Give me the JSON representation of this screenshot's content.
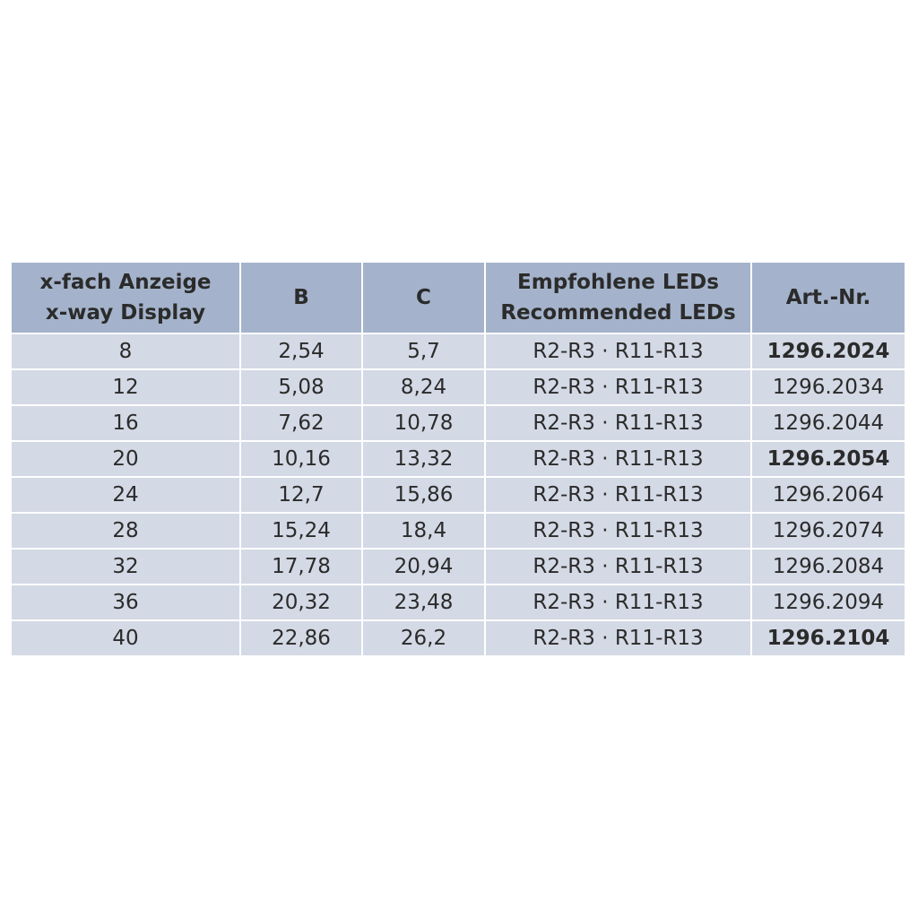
{
  "table": {
    "header": [
      [
        "x-fach Anzeige",
        "x-way Display"
      ],
      [
        "B"
      ],
      [
        "C"
      ],
      [
        "Empfohlene LEDs",
        "Recommended LEDs"
      ],
      [
        "Art.-Nr."
      ]
    ],
    "rows": [
      {
        "cells": [
          "8",
          "2,54",
          "5,7",
          "R2-R3 · R11-R13",
          "1296.2024"
        ],
        "bold": true
      },
      {
        "cells": [
          "12",
          "5,08",
          "8,24",
          "R2-R3 · R11-R13",
          "1296.2034"
        ],
        "bold": false
      },
      {
        "cells": [
          "16",
          "7,62",
          "10,78",
          "R2-R3 · R11-R13",
          "1296.2044"
        ],
        "bold": false
      },
      {
        "cells": [
          "20",
          "10,16",
          "13,32",
          "R2-R3 · R11-R13",
          "1296.2054"
        ],
        "bold": true
      },
      {
        "cells": [
          "24",
          "12,7",
          "15,86",
          "R2-R3 · R11-R13",
          "1296.2064"
        ],
        "bold": false
      },
      {
        "cells": [
          "28",
          "15,24",
          "18,4",
          "R2-R3 · R11-R13",
          "1296.2074"
        ],
        "bold": false
      },
      {
        "cells": [
          "32",
          "17,78",
          "20,94",
          "R2-R3 · R11-R13",
          "1296.2084"
        ],
        "bold": false
      },
      {
        "cells": [
          "36",
          "20,32",
          "23,48",
          "R2-R3 · R11-R13",
          "1296.2094"
        ],
        "bold": false
      },
      {
        "cells": [
          "40",
          "22,86",
          "26,2",
          "R2-R3 · R11-R13",
          "1296.2104"
        ],
        "bold": true
      }
    ]
  }
}
